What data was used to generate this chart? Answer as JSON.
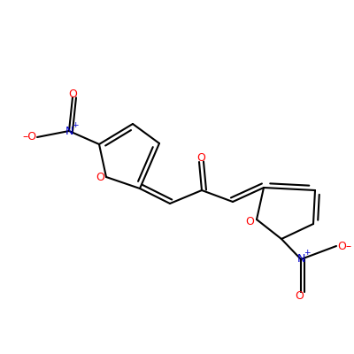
{
  "background_color": "#ffffff",
  "bond_color": "#000000",
  "oxygen_color": "#ff0000",
  "nitrogen_color": "#0000cd",
  "line_width": 1.5,
  "fig_w": 4.0,
  "fig_h": 4.0,
  "dpi": 100,
  "xlim": [
    0,
    400
  ],
  "ylim": [
    0,
    400
  ]
}
